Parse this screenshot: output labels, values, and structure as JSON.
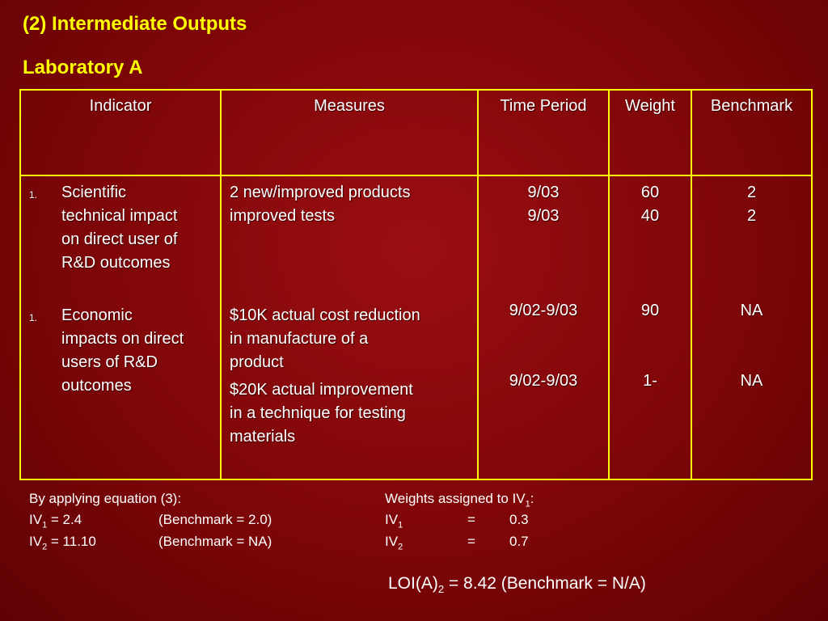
{
  "heading": "(2) Intermediate Outputs",
  "subheading": "Laboratory A",
  "table": {
    "headers": [
      "Indicator",
      "Measures",
      "Time Period",
      "Weight",
      "Benchmark"
    ],
    "indicators": [
      {
        "number": "1.",
        "lines": [
          "Scientific",
          "technical impact",
          "on direct user of",
          "R&D outcomes"
        ]
      },
      {
        "number": "1.",
        "lines": [
          "Economic",
          "impacts on direct",
          "users of R&D",
          "outcomes"
        ]
      }
    ],
    "measures": {
      "m1": [
        "2 new/improved products",
        "improved tests"
      ],
      "m2": [
        "$10K actual cost reduction",
        "in manufacture of a",
        "product"
      ],
      "m3": [
        "$20K actual improvement",
        "in a technique for testing",
        "materials"
      ]
    },
    "time_period": [
      "9/03",
      "9/03",
      "9/02-9/03",
      "9/02-9/03"
    ],
    "weight": [
      "60",
      "40",
      "90",
      "1-"
    ],
    "benchmark": [
      "2",
      "2",
      "NA",
      "NA"
    ]
  },
  "footer": {
    "left": {
      "line1": "By applying equation (3):",
      "iv1_label": "IV",
      "iv1_sub": "1",
      "iv1_value": " = 2.4",
      "iv1_benchmark": "(Benchmark = 2.0)",
      "iv2_label": "IV",
      "iv2_sub": "2",
      "iv2_value": " =  11.10",
      "iv2_benchmark": "(Benchmark =  NA)"
    },
    "right": {
      "line1_prefix": "Weights assigned to IV",
      "line1_sub": "1",
      "line1_suffix": ":",
      "w1_label": "IV",
      "w1_sub": "1",
      "w1_eq": "=",
      "w1_value": "0.3",
      "w2_label": "IV",
      "w2_sub": "2",
      "w2_eq": "=",
      "w2_value": "0.7"
    },
    "loi": {
      "prefix": "LOI(A)",
      "sub": "2",
      "suffix": " = 8.42 (Benchmark = N/A)"
    }
  }
}
